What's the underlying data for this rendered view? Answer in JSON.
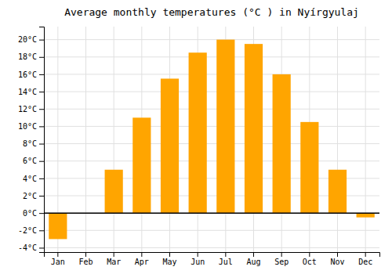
{
  "chart_data": {
    "type": "bar",
    "title": "Average monthly temperatures (°C ) in Nyírgyulaj",
    "categories": [
      "Jan",
      "Feb",
      "Mar",
      "Apr",
      "May",
      "Jun",
      "Jul",
      "Aug",
      "Sep",
      "Oct",
      "Nov",
      "Dec"
    ],
    "values": [
      -3.0,
      0.0,
      5.0,
      11.0,
      15.5,
      18.5,
      20.0,
      19.5,
      16.0,
      10.5,
      5.0,
      -0.5
    ],
    "color": "#FFA500",
    "ylim": [
      -4.5,
      21.5
    ],
    "yticks": [
      {
        "value": -4,
        "label": "-4°C"
      },
      {
        "value": -2,
        "label": "-2°C"
      },
      {
        "value": 0,
        "label": "0°C"
      },
      {
        "value": 2,
        "label": "2°C"
      },
      {
        "value": 4,
        "label": "4°C"
      },
      {
        "value": 6,
        "label": "6°C"
      },
      {
        "value": 8,
        "label": "8°C"
      },
      {
        "value": 10,
        "label": "10°C"
      },
      {
        "value": 12,
        "label": "12°C"
      },
      {
        "value": 14,
        "label": "14°C"
      },
      {
        "value": 16,
        "label": "16°C"
      },
      {
        "value": 18,
        "label": "18°C"
      },
      {
        "value": 20,
        "label": "20°C"
      }
    ],
    "grid": true
  }
}
